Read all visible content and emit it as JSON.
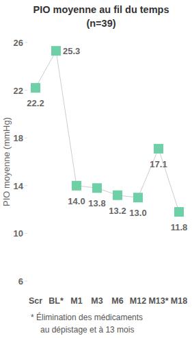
{
  "chart_data": {
    "type": "line",
    "title": "PIO moyenne au fil du temps",
    "subtitle": "(n=39)",
    "y_label": "PIO moyenne (mmHg)",
    "categories": [
      "Scr",
      "BL*",
      "M1",
      "M3",
      "M6",
      "M12",
      "M13*",
      "M18"
    ],
    "values": [
      22.2,
      25.3,
      14.0,
      13.8,
      13.2,
      13.0,
      17.1,
      11.8
    ],
    "value_labels": [
      "22.2",
      "25.3",
      "14.0",
      "13.8",
      "13.2",
      "13.0",
      "17.1",
      "11.8"
    ],
    "data_labels": true,
    "color": "#6dd0a6",
    "marker": "square",
    "line_style": "solid",
    "ylim": [
      6,
      26
    ],
    "yticks": [
      6,
      10,
      14,
      18,
      22,
      26
    ],
    "grid": false,
    "annotations": [
      "* Élimination des médicaments",
      "au dépistage et à 13 mois"
    ]
  }
}
